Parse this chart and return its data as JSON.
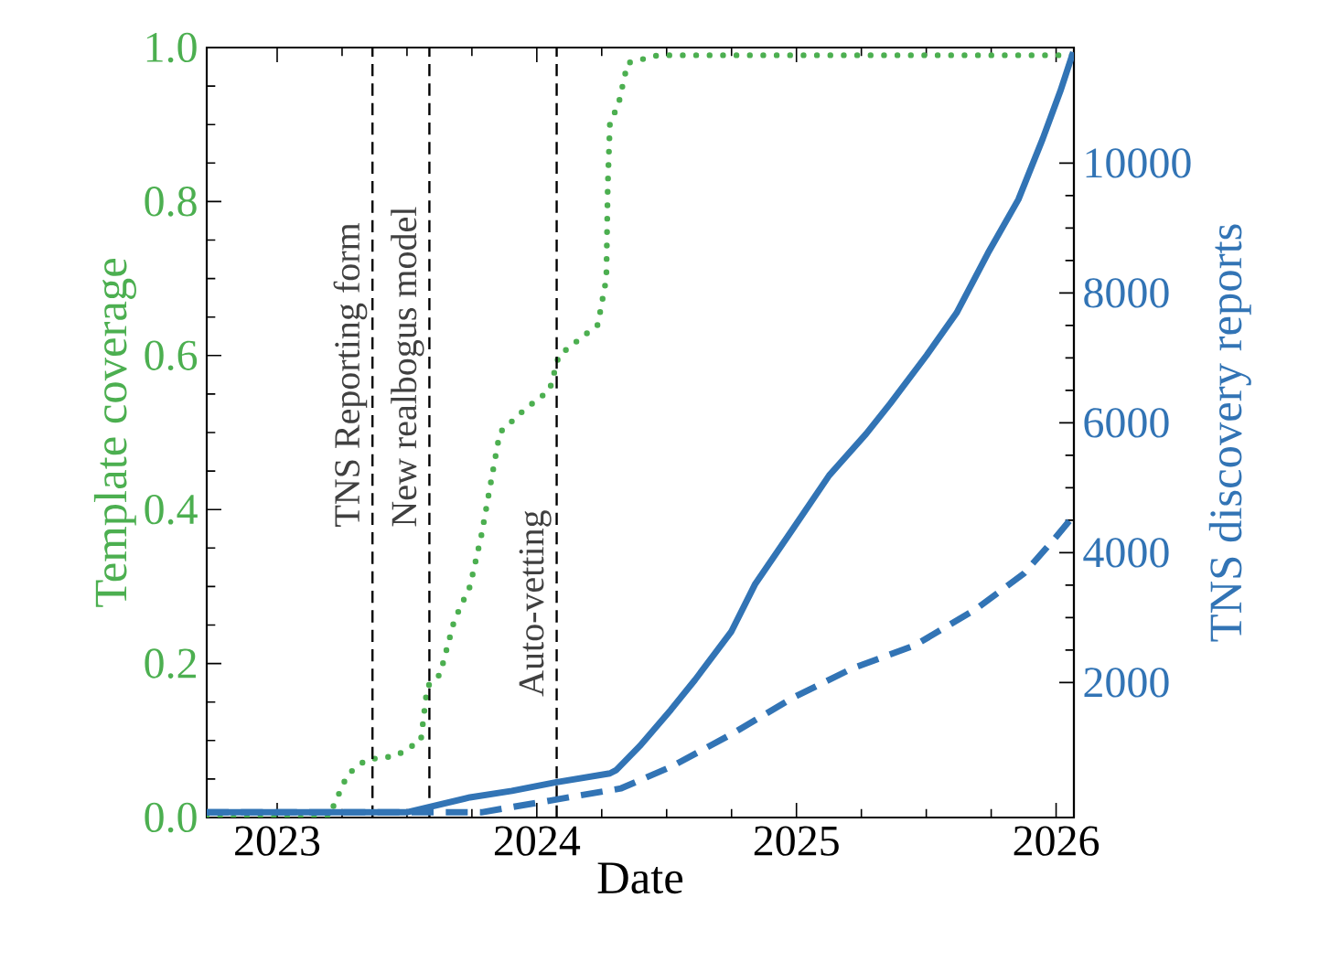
{
  "chart_data": {
    "type": "line",
    "xlabel": "Date",
    "ylabel": "Template coverage",
    "y2label": "TNS discovery reports",
    "xlim": [
      "2022-09-24",
      "2026-01-26"
    ],
    "xticks": [
      "2023",
      "2024",
      "2025",
      "2026"
    ],
    "ylim": [
      0,
      1
    ],
    "yticks": [
      {
        "value": 0,
        "label": "0.0"
      },
      {
        "value": 0.2,
        "label": "0.2"
      },
      {
        "value": 0.4,
        "label": "0.4"
      },
      {
        "value": 0.6,
        "label": "0.6"
      },
      {
        "value": 0.8,
        "label": "0.8"
      },
      {
        "value": 1,
        "label": "1.0"
      }
    ],
    "y2lim": [
      -80,
      11780
    ],
    "y2ticks": [
      2000,
      4000,
      6000,
      8000,
      10000
    ],
    "marker": "none",
    "grid": false,
    "series": [
      {
        "color": "#4caf50",
        "line_style": "dotted",
        "x": [
          "2022-09-24",
          "2023-03-14",
          "2023-04-10",
          "2023-05-06",
          "2023-06-17",
          "2023-07-22",
          "2023-07-31",
          "2023-08-18",
          "2023-09-07",
          "2023-09-29",
          "2023-10-15",
          "2023-11-10",
          "2023-12-15",
          "2024-01-19",
          "2024-02-01",
          "2024-03-27",
          "2024-04-08",
          "2024-04-10",
          "2024-04-13",
          "2024-04-26",
          "2024-05-08",
          "2024-06-20",
          "2026-01-26"
        ],
        "values": [
          0,
          0,
          0.056,
          0.075,
          0.08,
          0.1,
          0.17,
          0.186,
          0.256,
          0.3,
          0.366,
          0.5,
          0.53,
          0.555,
          0.6,
          0.64,
          0.7,
          0.82,
          0.9,
          0.93,
          0.98,
          0.99,
          0.99
        ]
      },
      {
        "color": "#3274b5",
        "line_style": "solid",
        "axis": "y2",
        "x": [
          "2022-09-24",
          "2023-07-02",
          "2023-09-29",
          "2023-11-27",
          "2024-01-27",
          "2024-04-13",
          "2024-04-22",
          "2024-05-25",
          "2024-07-08",
          "2024-08-11",
          "2024-10-01",
          "2024-11-04",
          "2024-12-26",
          "2025-02-16",
          "2025-04-09",
          "2025-05-13",
          "2025-07-03",
          "2025-08-14",
          "2025-09-27",
          "2025-11-09",
          "2025-12-13",
          "2026-01-07",
          "2026-01-25"
        ],
        "values": [
          0,
          0,
          230,
          330,
          460,
          600,
          650,
          1020,
          1580,
          2040,
          2780,
          3520,
          4350,
          5190,
          5830,
          6300,
          7040,
          7690,
          8610,
          9440,
          10370,
          11110,
          11710
        ]
      },
      {
        "color": "#3274b5",
        "line_style": "dashed",
        "axis": "y2",
        "x": [
          "2022-09-24",
          "2023-10-15",
          "2024-01-19",
          "2024-04-29",
          "2024-07-08",
          "2024-10-01",
          "2024-12-26",
          "2025-03-21",
          "2025-06-16",
          "2025-09-09",
          "2025-11-17",
          "2025-12-31",
          "2026-01-25"
        ],
        "values": [
          0,
          0,
          180,
          370,
          700,
          1200,
          1760,
          2220,
          2570,
          3120,
          3680,
          4230,
          4560
        ]
      }
    ],
    "ref_lines": [
      {
        "axis": "x",
        "value": "2023-05-15",
        "label": "TNS Reporting form",
        "color": "#000000",
        "line_style": "dashed"
      },
      {
        "axis": "x",
        "value": "2023-08-03",
        "label": "New realbogus model",
        "color": "#000000",
        "line_style": "dashed"
      },
      {
        "axis": "x",
        "value": "2024-01-29",
        "label": "Auto-vetting",
        "color": "#000000",
        "line_style": "dashed"
      }
    ]
  }
}
